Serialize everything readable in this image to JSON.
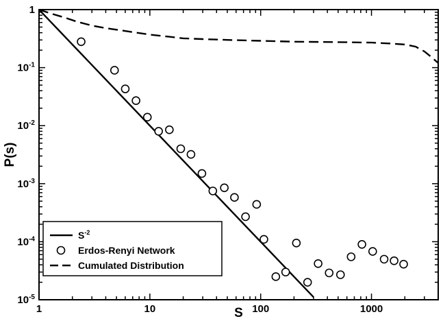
{
  "chart_data": {
    "type": "scatter",
    "xscale": "log",
    "yscale": "log",
    "xlim": [
      1,
      4000
    ],
    "ylim": [
      1e-05,
      1
    ],
    "xlabel": "S",
    "ylabel": "P(s)",
    "x_ticks": [
      {
        "value": 1,
        "label": "1"
      },
      {
        "value": 10,
        "label": "10"
      },
      {
        "value": 100,
        "label": "100"
      },
      {
        "value": 1000,
        "label": "1000"
      }
    ],
    "y_ticks": [
      {
        "value": 1,
        "label": "1",
        "base": "1",
        "exp": ""
      },
      {
        "value": 0.1,
        "label": "10-1",
        "base": "10",
        "exp": "-1"
      },
      {
        "value": 0.01,
        "label": "10-2",
        "base": "10",
        "exp": "-2"
      },
      {
        "value": 0.001,
        "label": "10-3",
        "base": "10",
        "exp": "-3"
      },
      {
        "value": 0.0001,
        "label": "10-4",
        "base": "10",
        "exp": "-4"
      },
      {
        "value": 1e-05,
        "label": "10-5",
        "base": "10",
        "exp": "-5"
      }
    ],
    "grid": false,
    "legend_position": "bottom-left",
    "series": [
      {
        "name": "S-2",
        "label_base": "S",
        "label_exp": "-2",
        "style": "solid-line",
        "x": [
          1,
          300
        ],
        "y": [
          1,
          1.11e-05
        ]
      },
      {
        "name": "Erdos-Renyi Network",
        "style": "open-circle",
        "x": [
          2.4,
          4.8,
          6.0,
          7.5,
          9.5,
          12,
          15,
          19,
          23.5,
          29.5,
          37,
          47,
          58,
          73,
          92,
          107,
          137,
          168,
          210,
          265,
          330,
          415,
          525,
          655,
          820,
          1025,
          1300,
          1600,
          1950
        ],
        "y": [
          0.28,
          0.09,
          0.043,
          0.027,
          0.014,
          0.008,
          0.0085,
          0.004,
          0.0032,
          0.0015,
          0.00075,
          0.00085,
          0.00058,
          0.00027,
          0.00044,
          0.00011,
          2.5e-05,
          3e-05,
          9.5e-05,
          2e-05,
          4.2e-05,
          2.9e-05,
          2.7e-05,
          5.5e-05,
          9e-05,
          6.8e-05,
          5e-05,
          4.7e-05,
          4.1e-05
        ]
      },
      {
        "name": "Cumulated Distribution",
        "style": "dashed-line",
        "x": [
          1,
          1.3,
          1.7,
          2.2,
          3,
          4,
          5,
          7,
          10,
          15,
          20,
          30,
          50,
          100,
          200,
          500,
          1000,
          1500,
          2000,
          2500,
          3000,
          3500,
          4000
        ],
        "y": [
          1,
          0.85,
          0.73,
          0.62,
          0.53,
          0.48,
          0.45,
          0.41,
          0.37,
          0.34,
          0.32,
          0.31,
          0.3,
          0.29,
          0.28,
          0.275,
          0.27,
          0.26,
          0.25,
          0.23,
          0.19,
          0.15,
          0.12
        ]
      }
    ]
  }
}
